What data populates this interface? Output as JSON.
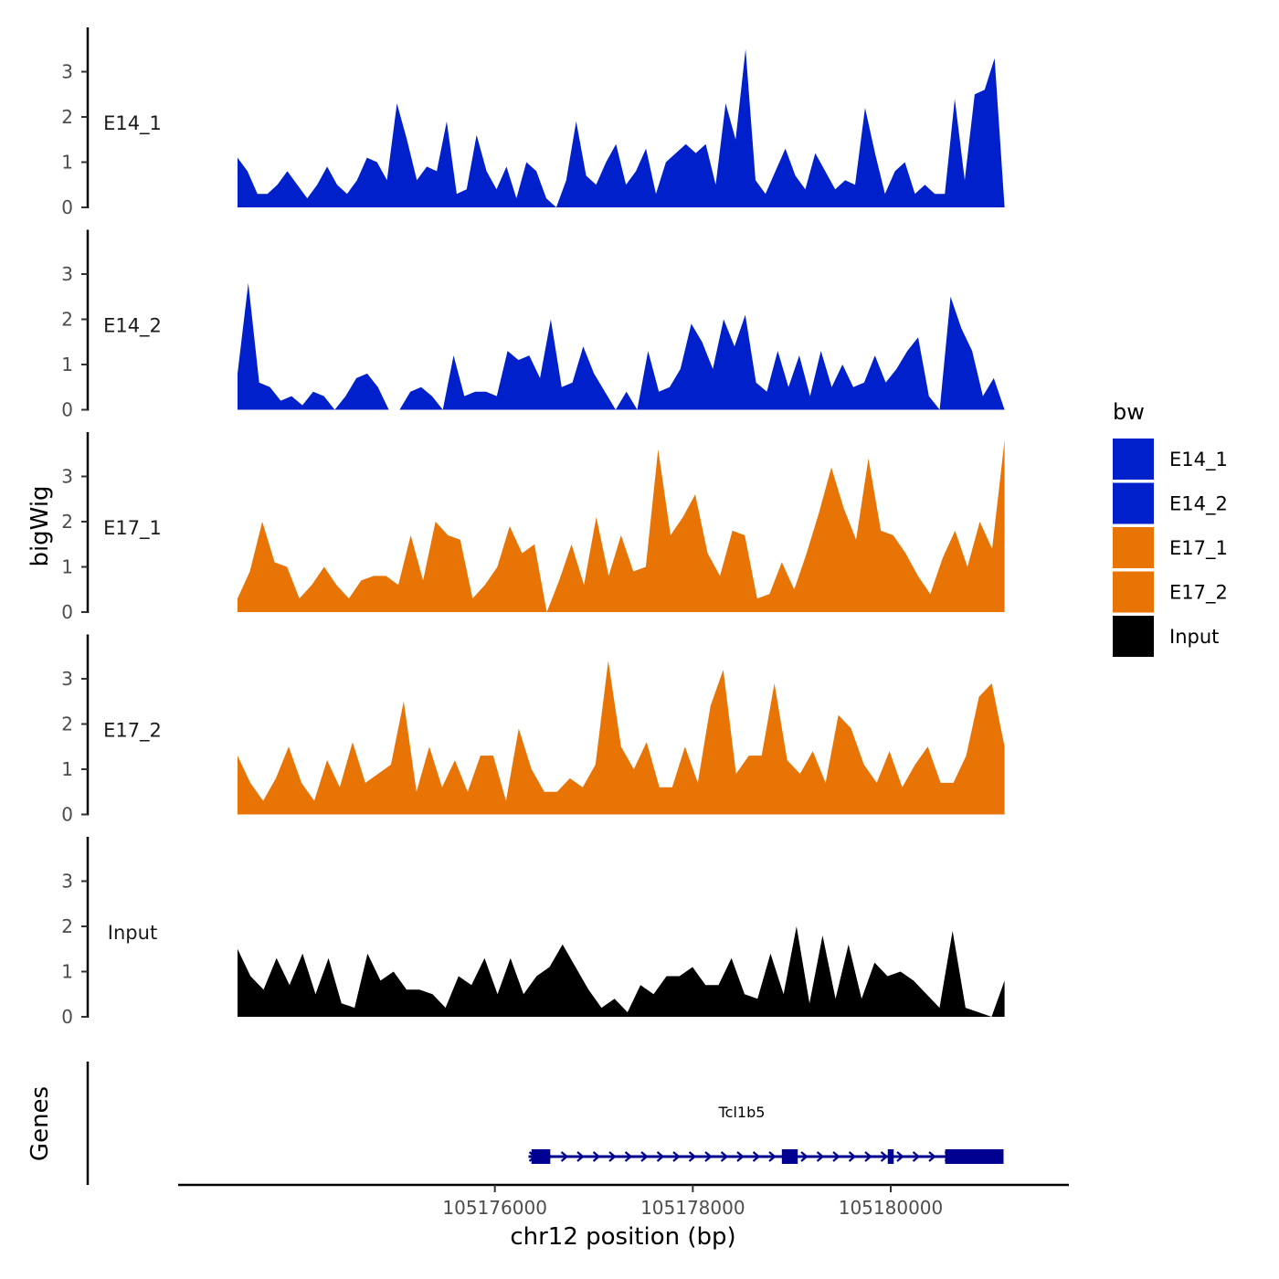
{
  "chart_data": {
    "type": "area",
    "ylabel": "bigWig",
    "genes_label": "Genes",
    "xlabel": "chr12 position (bp)",
    "xlim": [
      105172800,
      105181800
    ],
    "ylim": [
      0,
      4
    ],
    "y_ticks": [
      0,
      1,
      2,
      3
    ],
    "x_ticks": [
      105176000,
      105178000,
      105180000
    ],
    "x_tick_labels": [
      "105176000",
      "105178000",
      "105180000"
    ],
    "x_start": 105173400,
    "x_end": 105181150,
    "legend": {
      "title": "bw",
      "entries": [
        {
          "name": "E14_1",
          "color": "#0020CC"
        },
        {
          "name": "E14_2",
          "color": "#0020CC"
        },
        {
          "name": "E17_1",
          "color": "#E87406"
        },
        {
          "name": "E17_2",
          "color": "#E87406"
        },
        {
          "name": "Input",
          "color": "#000000"
        }
      ]
    },
    "series": [
      {
        "name": "E14_1",
        "color": "#0020CC",
        "values": [
          1.1,
          0.8,
          0.3,
          0.3,
          0.5,
          0.8,
          0.5,
          0.2,
          0.5,
          0.9,
          0.5,
          0.3,
          0.6,
          1.1,
          1.0,
          0.6,
          2.3,
          1.5,
          0.6,
          0.9,
          0.8,
          1.9,
          0.3,
          0.4,
          1.6,
          0.8,
          0.4,
          0.9,
          0.2,
          1.0,
          0.8,
          0.2,
          0.0,
          0.6,
          1.9,
          0.7,
          0.5,
          1.0,
          1.4,
          0.5,
          0.8,
          1.3,
          0.3,
          1.0,
          1.2,
          1.4,
          1.2,
          1.4,
          0.5,
          2.3,
          1.5,
          3.5,
          0.6,
          0.3,
          0.8,
          1.3,
          0.7,
          0.4,
          1.2,
          0.8,
          0.4,
          0.6,
          0.5,
          2.2,
          1.2,
          0.3,
          0.8,
          1.0,
          0.3,
          0.5,
          0.3,
          0.3,
          2.4,
          0.6,
          2.5,
          2.6,
          3.3,
          0.0
        ]
      },
      {
        "name": "E14_2",
        "color": "#0020CC",
        "values": [
          0.8,
          2.8,
          0.6,
          0.5,
          0.2,
          0.3,
          0.1,
          0.4,
          0.3,
          0.0,
          0.3,
          0.7,
          0.8,
          0.5,
          0.0,
          0.0,
          0.4,
          0.5,
          0.3,
          0.0,
          1.2,
          0.3,
          0.4,
          0.4,
          0.3,
          1.3,
          1.1,
          1.2,
          0.7,
          2.0,
          0.5,
          0.6,
          1.4,
          0.8,
          0.4,
          0.0,
          0.4,
          0.0,
          1.3,
          0.4,
          0.5,
          0.9,
          1.9,
          1.5,
          0.9,
          2.0,
          1.4,
          2.1,
          0.6,
          0.4,
          1.3,
          0.5,
          1.2,
          0.3,
          1.3,
          0.5,
          1.0,
          0.5,
          0.6,
          1.2,
          0.6,
          0.9,
          1.3,
          1.6,
          0.3,
          0.0,
          2.5,
          1.8,
          1.3,
          0.3,
          0.7,
          0.0
        ]
      },
      {
        "name": "E17_1",
        "color": "#E87406",
        "values": [
          0.3,
          0.9,
          2.0,
          1.1,
          1.0,
          0.3,
          0.6,
          1.0,
          0.6,
          0.3,
          0.7,
          0.8,
          0.8,
          0.6,
          1.7,
          0.7,
          2.0,
          1.7,
          1.6,
          0.3,
          0.6,
          1.0,
          1.9,
          1.3,
          1.5,
          0.0,
          0.7,
          1.5,
          0.6,
          2.1,
          0.8,
          1.7,
          0.9,
          1.0,
          3.6,
          1.7,
          2.1,
          2.6,
          1.3,
          0.8,
          1.8,
          1.7,
          0.3,
          0.4,
          1.1,
          0.5,
          1.3,
          2.2,
          3.2,
          2.3,
          1.6,
          3.4,
          1.8,
          1.7,
          1.3,
          0.8,
          0.4,
          1.2,
          1.8,
          1.0,
          2.0,
          1.4,
          3.8
        ]
      },
      {
        "name": "E17_2",
        "color": "#E87406",
        "values": [
          1.3,
          0.7,
          0.3,
          0.8,
          1.5,
          0.7,
          0.3,
          1.2,
          0.6,
          1.6,
          0.7,
          0.9,
          1.1,
          2.5,
          0.5,
          1.5,
          0.6,
          1.2,
          0.5,
          1.3,
          1.3,
          0.3,
          1.9,
          1.0,
          0.5,
          0.5,
          0.8,
          0.6,
          1.1,
          3.4,
          1.5,
          1.0,
          1.6,
          0.6,
          0.6,
          1.5,
          0.7,
          2.4,
          3.2,
          0.9,
          1.3,
          1.3,
          2.9,
          1.2,
          0.9,
          1.4,
          0.7,
          2.2,
          1.9,
          1.1,
          0.7,
          1.4,
          0.6,
          1.1,
          1.5,
          0.7,
          0.7,
          1.3,
          2.6,
          2.9,
          1.5
        ]
      },
      {
        "name": "Input",
        "color": "#000000",
        "values": [
          1.5,
          0.9,
          0.6,
          1.3,
          0.7,
          1.4,
          0.5,
          1.3,
          0.3,
          0.2,
          1.4,
          0.8,
          1.0,
          0.6,
          0.6,
          0.5,
          0.2,
          0.9,
          0.7,
          1.3,
          0.5,
          1.3,
          0.5,
          0.9,
          1.1,
          1.6,
          1.1,
          0.6,
          0.2,
          0.4,
          0.1,
          0.7,
          0.5,
          0.9,
          0.9,
          1.1,
          0.7,
          0.7,
          1.3,
          0.5,
          0.4,
          1.4,
          0.5,
          2.0,
          0.3,
          1.8,
          0.4,
          1.6,
          0.4,
          1.2,
          0.9,
          1.0,
          0.8,
          0.5,
          0.2,
          1.9,
          0.2,
          0.1,
          0.0,
          0.8
        ]
      }
    ],
    "gene": {
      "name": "Tcl1b5",
      "start": 105176340,
      "end": 105181140,
      "strand": "+",
      "color": "#000090",
      "exons": [
        [
          105176370,
          105176560
        ],
        [
          105178900,
          105179060
        ],
        [
          105179970,
          105180030
        ],
        [
          105180550,
          105181140
        ]
      ]
    }
  }
}
